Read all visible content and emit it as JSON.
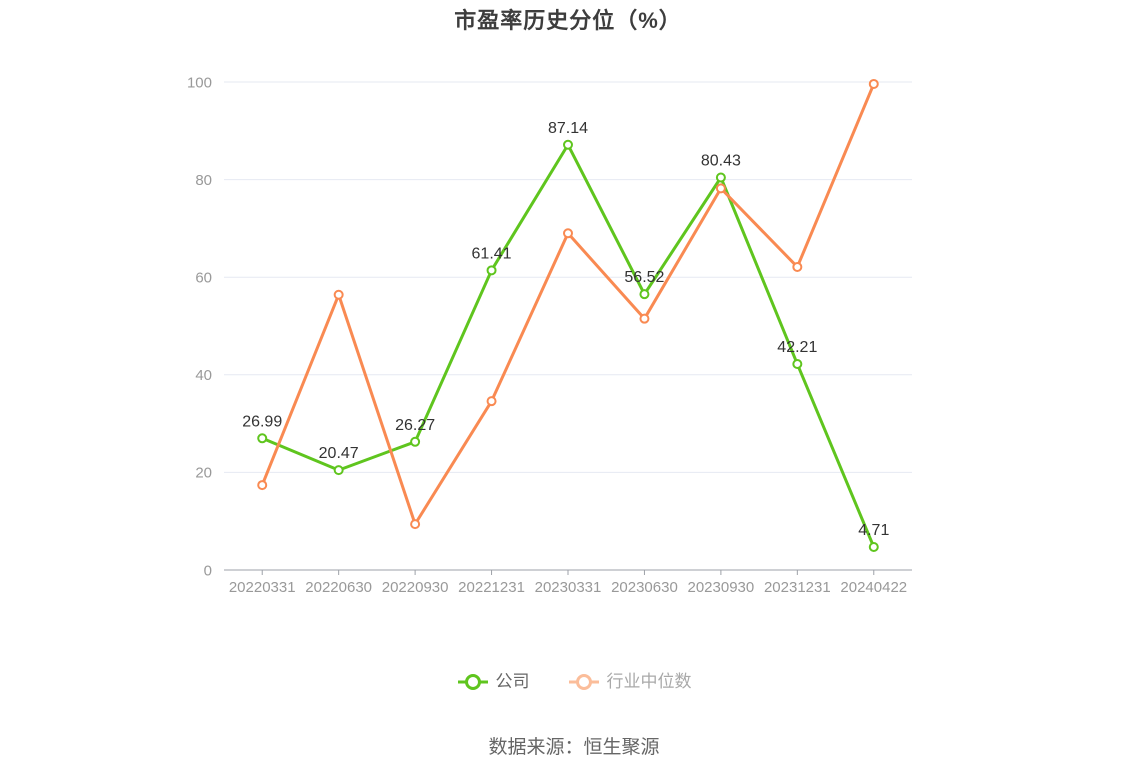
{
  "title": "市盈率历史分位（%）",
  "source_note": "数据来源：恒生聚源",
  "colors": {
    "company_line": "#5FC51E",
    "industry_line": "#F98A52",
    "grid": "#E6E9F2",
    "axis": "#9DA1A8",
    "tick_text": "#999999",
    "data_label": "#333333",
    "title_text": "#3d3d3d",
    "point_fill": "#ffffff"
  },
  "chart_data": {
    "type": "line",
    "categories": [
      "20220331",
      "20220630",
      "20220930",
      "20221231",
      "20230331",
      "20230630",
      "20230930",
      "20231231",
      "20240422"
    ],
    "series": [
      {
        "name": "公司",
        "color": "#5FC51E",
        "values": [
          26.99,
          20.47,
          26.27,
          61.41,
          87.14,
          56.52,
          80.43,
          42.21,
          4.71
        ],
        "labels_shown": true
      },
      {
        "name": "行业中位数",
        "color": "#F98A52",
        "values": [
          17.4,
          56.4,
          9.4,
          34.6,
          69.0,
          51.5,
          78.2,
          62.1,
          99.6
        ],
        "labels_shown": false
      }
    ],
    "title": "市盈率历史分位（%）",
    "xlabel": "",
    "ylabel": "",
    "ylim": [
      0,
      100
    ],
    "yticks": [
      0,
      20,
      40,
      60,
      80,
      100
    ],
    "grid": true,
    "legend_position": "bottom"
  },
  "legend": {
    "items": [
      {
        "label": "公司",
        "icon_color": "#5FC51E",
        "text_color": "#666666"
      },
      {
        "label": "行业中位数",
        "icon_color": "#FBBD9A",
        "text_color": "#A9A9A9"
      }
    ]
  }
}
